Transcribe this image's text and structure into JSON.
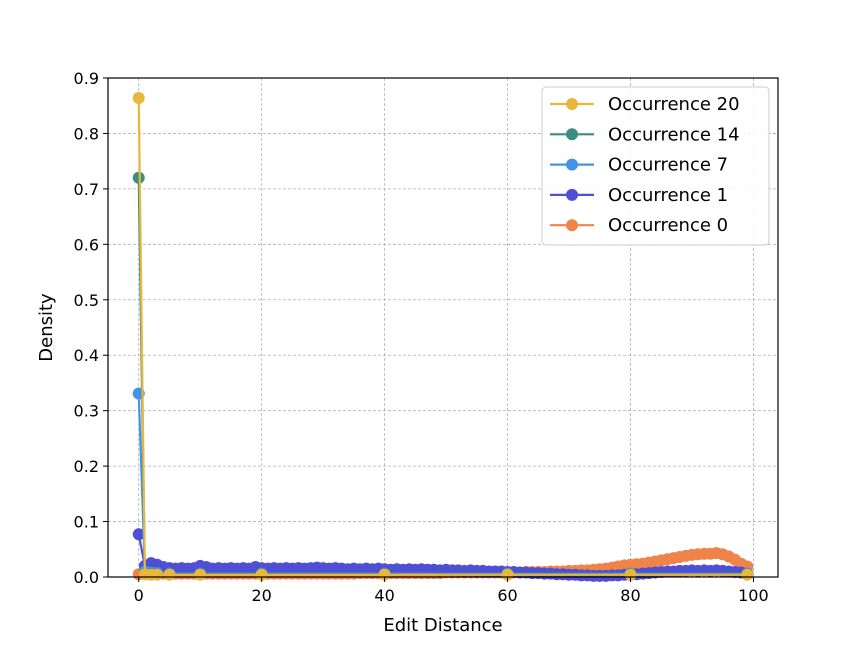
{
  "chart_data": {
    "type": "line",
    "title": "",
    "xlabel": "Edit Distance",
    "ylabel": "Density",
    "xlim": [
      -5,
      104
    ],
    "ylim": [
      0,
      0.9
    ],
    "xticks": [
      0,
      20,
      40,
      60,
      80,
      100
    ],
    "yticks": [
      0.0,
      0.1,
      0.2,
      0.3,
      0.4,
      0.5,
      0.6,
      0.7,
      0.8,
      0.9
    ],
    "grid": true,
    "legend_position": "top-right",
    "series": [
      {
        "name": "Occurrence 20",
        "color": "#e9b73e",
        "points": [
          [
            0,
            0.864
          ],
          [
            1,
            0.005
          ],
          [
            2,
            0.004
          ],
          [
            3,
            0.004
          ],
          [
            5,
            0.004
          ],
          [
            10,
            0.004
          ],
          [
            20,
            0.004
          ],
          [
            40,
            0.004
          ],
          [
            60,
            0.004
          ],
          [
            80,
            0.004
          ],
          [
            99,
            0.004
          ]
        ]
      },
      {
        "name": "Occurrence 14",
        "color": "#3a8f82",
        "points": [
          [
            0,
            0.72
          ],
          [
            1,
            0.006
          ],
          [
            2,
            0.005
          ],
          [
            3,
            0.005
          ],
          [
            5,
            0.005
          ],
          [
            10,
            0.005
          ],
          [
            20,
            0.005
          ],
          [
            40,
            0.005
          ],
          [
            60,
            0.005
          ],
          [
            80,
            0.005
          ],
          [
            99,
            0.005
          ]
        ]
      },
      {
        "name": "Occurrence 7",
        "color": "#4593e8",
        "points": [
          [
            0,
            0.331
          ],
          [
            1,
            0.01
          ],
          [
            2,
            0.008
          ],
          [
            3,
            0.007
          ],
          [
            5,
            0.006
          ],
          [
            10,
            0.006
          ],
          [
            20,
            0.006
          ],
          [
            40,
            0.006
          ],
          [
            60,
            0.006
          ],
          [
            80,
            0.006
          ],
          [
            99,
            0.006
          ]
        ]
      },
      {
        "name": "Occurrence 1",
        "color": "#4f4fd6",
        "points": [
          [
            0,
            0.077
          ],
          [
            1,
            0.02
          ],
          [
            2,
            0.025
          ],
          [
            3,
            0.022
          ],
          [
            4,
            0.018
          ],
          [
            5,
            0.016
          ],
          [
            6,
            0.015
          ],
          [
            7,
            0.016
          ],
          [
            8,
            0.015
          ],
          [
            9,
            0.016
          ],
          [
            10,
            0.02
          ],
          [
            11,
            0.018
          ],
          [
            12,
            0.015
          ],
          [
            13,
            0.016
          ],
          [
            14,
            0.015
          ],
          [
            15,
            0.016
          ],
          [
            16,
            0.015
          ],
          [
            17,
            0.016
          ],
          [
            18,
            0.015
          ],
          [
            19,
            0.018
          ],
          [
            20,
            0.016
          ],
          [
            21,
            0.015
          ],
          [
            22,
            0.016
          ],
          [
            23,
            0.015
          ],
          [
            24,
            0.016
          ],
          [
            25,
            0.015
          ],
          [
            26,
            0.016
          ],
          [
            27,
            0.015
          ],
          [
            28,
            0.016
          ],
          [
            29,
            0.017
          ],
          [
            30,
            0.016
          ],
          [
            31,
            0.015
          ],
          [
            32,
            0.016
          ],
          [
            33,
            0.015
          ],
          [
            34,
            0.014
          ],
          [
            35,
            0.015
          ],
          [
            36,
            0.014
          ],
          [
            37,
            0.015
          ],
          [
            38,
            0.014
          ],
          [
            39,
            0.015
          ],
          [
            40,
            0.014
          ],
          [
            41,
            0.013
          ],
          [
            42,
            0.014
          ],
          [
            43,
            0.013
          ],
          [
            44,
            0.014
          ],
          [
            45,
            0.013
          ],
          [
            46,
            0.014
          ],
          [
            47,
            0.013
          ],
          [
            48,
            0.013
          ],
          [
            49,
            0.012
          ],
          [
            50,
            0.013
          ],
          [
            51,
            0.012
          ],
          [
            52,
            0.012
          ],
          [
            53,
            0.011
          ],
          [
            54,
            0.012
          ],
          [
            55,
            0.011
          ],
          [
            56,
            0.011
          ],
          [
            57,
            0.01
          ],
          [
            58,
            0.01
          ],
          [
            59,
            0.01
          ],
          [
            60,
            0.009
          ],
          [
            61,
            0.009
          ],
          [
            62,
            0.008
          ],
          [
            63,
            0.008
          ],
          [
            64,
            0.007
          ],
          [
            65,
            0.007
          ],
          [
            66,
            0.006
          ],
          [
            67,
            0.006
          ],
          [
            68,
            0.005
          ],
          [
            69,
            0.005
          ],
          [
            70,
            0.004
          ],
          [
            71,
            0.004
          ],
          [
            72,
            0.003
          ],
          [
            73,
            0.003
          ],
          [
            74,
            0.002
          ],
          [
            75,
            0.002
          ],
          [
            76,
            0.002
          ],
          [
            77,
            0.003
          ],
          [
            78,
            0.003
          ],
          [
            79,
            0.004
          ],
          [
            80,
            0.004
          ],
          [
            81,
            0.005
          ],
          [
            82,
            0.006
          ],
          [
            83,
            0.007
          ],
          [
            84,
            0.008
          ],
          [
            85,
            0.009
          ],
          [
            86,
            0.01
          ],
          [
            87,
            0.01
          ],
          [
            88,
            0.011
          ],
          [
            89,
            0.011
          ],
          [
            90,
            0.012
          ],
          [
            91,
            0.011
          ],
          [
            92,
            0.012
          ],
          [
            93,
            0.011
          ],
          [
            94,
            0.012
          ],
          [
            95,
            0.011
          ],
          [
            96,
            0.01
          ],
          [
            97,
            0.009
          ],
          [
            98,
            0.008
          ],
          [
            99,
            0.006
          ]
        ]
      },
      {
        "name": "Occurrence 0",
        "color": "#ef844b",
        "points": [
          [
            0,
            0.005
          ],
          [
            1,
            0.005
          ],
          [
            2,
            0.005
          ],
          [
            3,
            0.006
          ],
          [
            4,
            0.006
          ],
          [
            5,
            0.006
          ],
          [
            6,
            0.006
          ],
          [
            7,
            0.006
          ],
          [
            8,
            0.006
          ],
          [
            9,
            0.006
          ],
          [
            10,
            0.006
          ],
          [
            11,
            0.006
          ],
          [
            12,
            0.006
          ],
          [
            13,
            0.006
          ],
          [
            14,
            0.006
          ],
          [
            15,
            0.006
          ],
          [
            16,
            0.006
          ],
          [
            17,
            0.006
          ],
          [
            18,
            0.006
          ],
          [
            19,
            0.006
          ],
          [
            20,
            0.006
          ],
          [
            21,
            0.006
          ],
          [
            22,
            0.006
          ],
          [
            23,
            0.006
          ],
          [
            24,
            0.006
          ],
          [
            25,
            0.006
          ],
          [
            26,
            0.006
          ],
          [
            27,
            0.006
          ],
          [
            28,
            0.006
          ],
          [
            29,
            0.006
          ],
          [
            30,
            0.006
          ],
          [
            31,
            0.006
          ],
          [
            32,
            0.006
          ],
          [
            33,
            0.006
          ],
          [
            34,
            0.006
          ],
          [
            35,
            0.006
          ],
          [
            36,
            0.007
          ],
          [
            37,
            0.007
          ],
          [
            38,
            0.007
          ],
          [
            39,
            0.007
          ],
          [
            40,
            0.007
          ],
          [
            41,
            0.007
          ],
          [
            42,
            0.007
          ],
          [
            43,
            0.007
          ],
          [
            44,
            0.007
          ],
          [
            45,
            0.007
          ],
          [
            46,
            0.007
          ],
          [
            47,
            0.007
          ],
          [
            48,
            0.007
          ],
          [
            49,
            0.007
          ],
          [
            50,
            0.008
          ],
          [
            51,
            0.008
          ],
          [
            52,
            0.008
          ],
          [
            53,
            0.008
          ],
          [
            54,
            0.008
          ],
          [
            55,
            0.008
          ],
          [
            56,
            0.008
          ],
          [
            57,
            0.008
          ],
          [
            58,
            0.008
          ],
          [
            59,
            0.008
          ],
          [
            60,
            0.008
          ],
          [
            61,
            0.008
          ],
          [
            62,
            0.008
          ],
          [
            63,
            0.009
          ],
          [
            64,
            0.009
          ],
          [
            65,
            0.009
          ],
          [
            66,
            0.009
          ],
          [
            67,
            0.01
          ],
          [
            68,
            0.01
          ],
          [
            69,
            0.01
          ],
          [
            70,
            0.011
          ],
          [
            71,
            0.011
          ],
          [
            72,
            0.012
          ],
          [
            73,
            0.012
          ],
          [
            74,
            0.013
          ],
          [
            75,
            0.014
          ],
          [
            76,
            0.015
          ],
          [
            77,
            0.017
          ],
          [
            78,
            0.019
          ],
          [
            79,
            0.021
          ],
          [
            80,
            0.022
          ],
          [
            81,
            0.023
          ],
          [
            82,
            0.024
          ],
          [
            83,
            0.026
          ],
          [
            84,
            0.028
          ],
          [
            85,
            0.03
          ],
          [
            86,
            0.032
          ],
          [
            87,
            0.034
          ],
          [
            88,
            0.036
          ],
          [
            89,
            0.038
          ],
          [
            90,
            0.04
          ],
          [
            91,
            0.041
          ],
          [
            92,
            0.042
          ],
          [
            93,
            0.042
          ],
          [
            94,
            0.043
          ],
          [
            95,
            0.041
          ],
          [
            96,
            0.037
          ],
          [
            97,
            0.031
          ],
          [
            98,
            0.024
          ],
          [
            99,
            0.019
          ]
        ]
      }
    ]
  }
}
